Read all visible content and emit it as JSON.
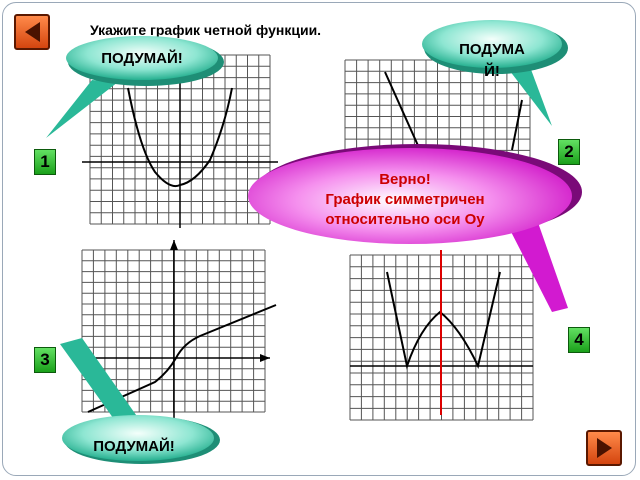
{
  "question": "Укажите график четной функции.",
  "think_label": "ПОДУМАЙ!",
  "feedback": {
    "line1": "Верно!",
    "line2": "График симметричен",
    "line3": "относительно оси Оу"
  },
  "options": [
    {
      "number": "1",
      "graph": "parabola"
    },
    {
      "number": "2",
      "graph": "v-shape"
    },
    {
      "number": "3",
      "graph": "increasing-curve"
    },
    {
      "number": "4",
      "graph": "w-shape"
    }
  ],
  "correct_option": "4",
  "colors": {
    "grid": "#555555",
    "curve": "#000000",
    "symmetry_axis": "#dd0000",
    "number_button": "#33c033",
    "nav_button": "#e8571c",
    "think_bubble": "#3cc6a8",
    "answer_bubble": "#e020d8",
    "answer_text": "#cc0000"
  },
  "icons": {
    "back": "arrow-left-icon",
    "forward": "arrow-right-icon"
  }
}
